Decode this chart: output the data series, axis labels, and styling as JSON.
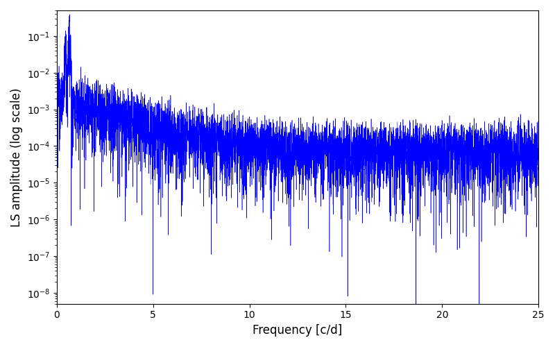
{
  "xlabel": "Frequency [c/d]",
  "ylabel": "LS amplitude (log scale)",
  "line_color": "#0000ff",
  "xlim": [
    0,
    25
  ],
  "ylim": [
    5e-09,
    0.5
  ],
  "yticks": [
    1e-08,
    1e-07,
    1e-06,
    1e-05,
    0.0001,
    0.001,
    0.01,
    0.1
  ],
  "xticks": [
    0,
    5,
    10,
    15,
    20,
    25
  ],
  "figsize": [
    8.0,
    5.0
  ],
  "dpi": 100,
  "seed": 12345,
  "n_points": 6000,
  "freq_max": 25.0,
  "peak_freq": 0.65,
  "peak_amplitude": 0.13,
  "peak2_freq": 0.45,
  "peak2_amplitude": 0.07,
  "base_amplitude_low": 0.003,
  "base_amplitude_high": 0.0001,
  "transition_freq": 3.0,
  "line_width": 0.4
}
